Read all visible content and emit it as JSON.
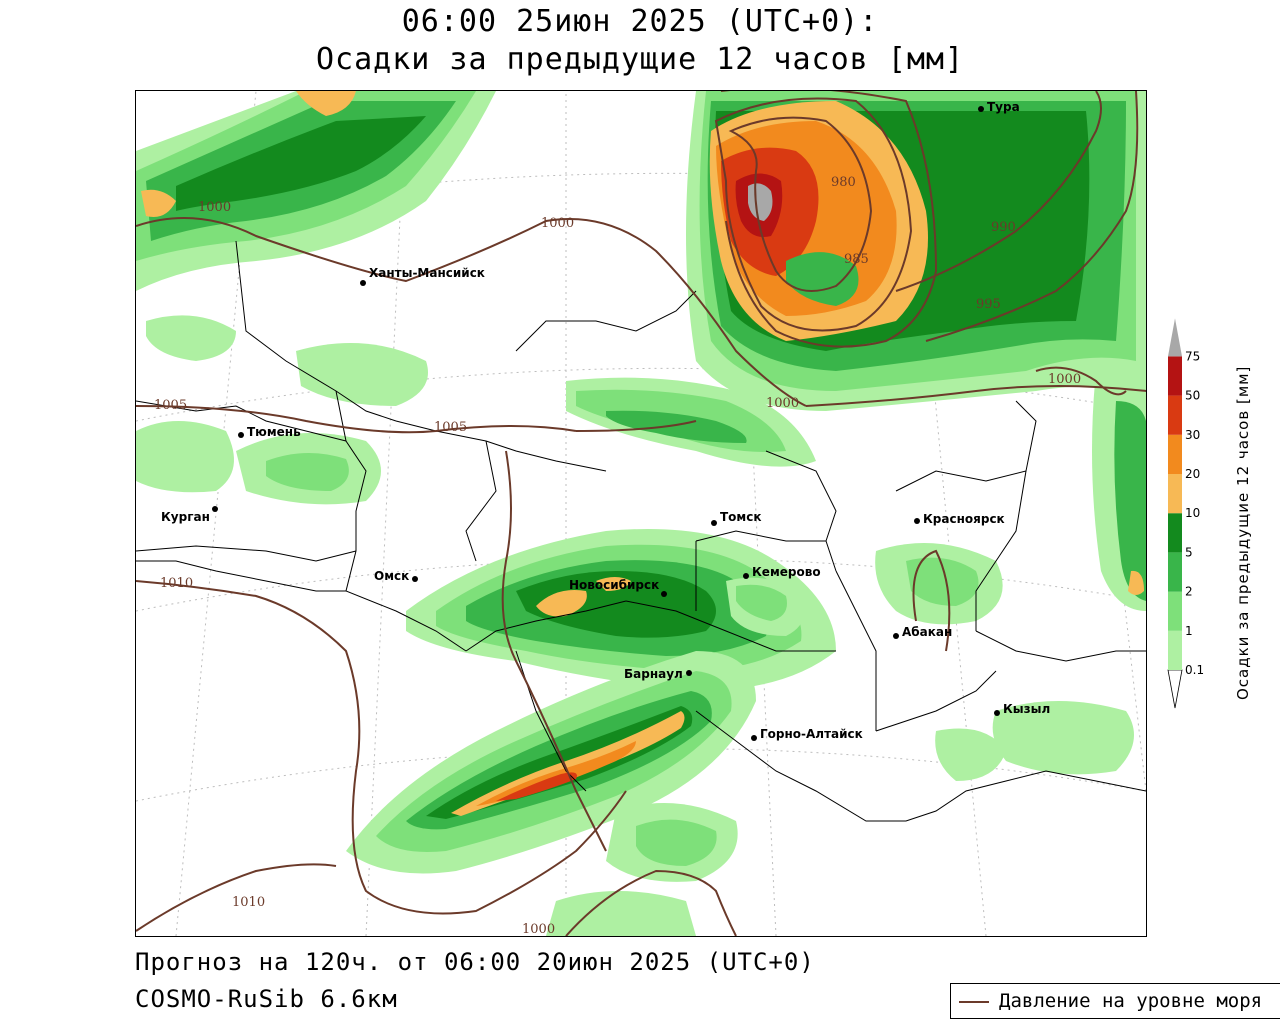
{
  "title": {
    "line1": "06:00 25июн 2025 (UTC+0):",
    "line2": "Осадки за предыдущие 12 часов [мм]"
  },
  "footer": {
    "forecast": "Прогноз на 120ч. от 06:00 20июн 2025 (UTC+0)",
    "model": "COSMO-RuSib 6.6км"
  },
  "legend": {
    "label": "Давление на уровне моря",
    "color": "#6b3a2a"
  },
  "colorbar": {
    "title": "Осадки за предыдущие 12 часов [мм]",
    "ticks": [
      "0.1",
      "1",
      "2",
      "5",
      "10",
      "20",
      "30",
      "50",
      "75"
    ],
    "colors": [
      "#aef0a2",
      "#7ee07a",
      "#39b54a",
      "#138a1e",
      "#f7b955",
      "#f28a1e",
      "#d93a12",
      "#b41313",
      "#a8a8a8"
    ]
  },
  "cities": [
    {
      "name": "Ханты-Мансийск"
    },
    {
      "name": "Тюмень"
    },
    {
      "name": "Курган"
    },
    {
      "name": "Омск"
    },
    {
      "name": "Новосибирск"
    },
    {
      "name": "Томск"
    },
    {
      "name": "Кемерово"
    },
    {
      "name": "Барнаул"
    },
    {
      "name": "Горно-Алтайск"
    },
    {
      "name": "Красноярск"
    },
    {
      "name": "Абакан"
    },
    {
      "name": "Кызыл"
    },
    {
      "name": "Тура"
    }
  ],
  "isobar_labels": [
    "1000",
    "1000",
    "980",
    "985",
    "990",
    "995",
    "1000",
    "1000",
    "1005",
    "1005",
    "1010",
    "1010",
    "1000"
  ]
}
